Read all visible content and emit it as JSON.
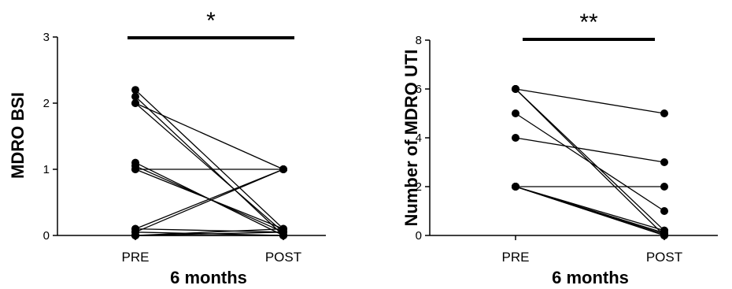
{
  "chart_data": [
    {
      "type": "line",
      "ylabel": "MDRO BSI",
      "xlabel": "6 months",
      "categories": [
        "PRE",
        "POST"
      ],
      "ylim": [
        0,
        3
      ],
      "yticks": [
        0,
        1,
        2,
        3
      ],
      "significance": "*",
      "pairs": [
        [
          2.2,
          0.1
        ],
        [
          2.1,
          0.0
        ],
        [
          2.0,
          0.05
        ],
        [
          2.0,
          1.0
        ],
        [
          1.1,
          0.0
        ],
        [
          1.05,
          0.05
        ],
        [
          1.0,
          1.0
        ],
        [
          1.0,
          0.1
        ],
        [
          0.1,
          1.0
        ],
        [
          0.05,
          1.0
        ],
        [
          0.0,
          0.0
        ],
        [
          0.0,
          0.05
        ],
        [
          0.0,
          0.1
        ],
        [
          0.05,
          0.0
        ],
        [
          0.1,
          0.05
        ],
        [
          0.0,
          0.0
        ]
      ]
    },
    {
      "type": "line",
      "ylabel": "Number of MDRO UTI",
      "xlabel": "6 months",
      "categories": [
        "PRE",
        "POST"
      ],
      "ylim": [
        0,
        8
      ],
      "yticks": [
        0,
        2,
        4,
        6,
        8
      ],
      "significance": "**",
      "pairs": [
        [
          6,
          5
        ],
        [
          6,
          0.2
        ],
        [
          6,
          0
        ],
        [
          5,
          1
        ],
        [
          4,
          3
        ],
        [
          2,
          2
        ],
        [
          2,
          0.2
        ],
        [
          2,
          0.1
        ],
        [
          2,
          0.0
        ],
        [
          2,
          0.05
        ]
      ]
    }
  ]
}
